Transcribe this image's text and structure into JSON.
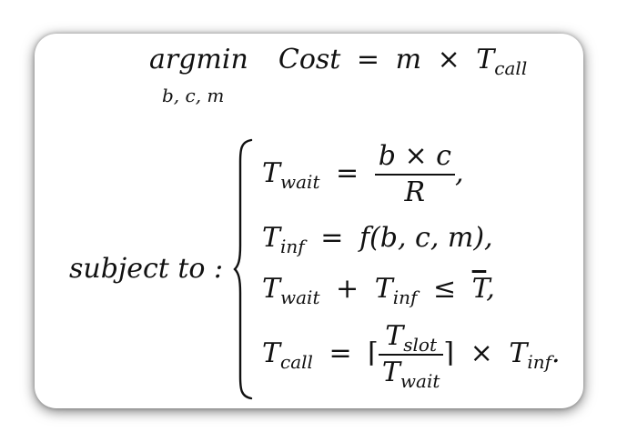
{
  "objective": {
    "operator": "argmin",
    "variables": "b, c, m",
    "lhs": "Cost",
    "equals": "=",
    "m": "m",
    "times": "×",
    "T": "T",
    "sub": "call"
  },
  "subject_to": "subject to :",
  "constraints": {
    "c1": {
      "T": "T",
      "sub": "wait",
      "eq": "=",
      "num": "b × c",
      "den": "R",
      "trail": ","
    },
    "c2": {
      "T": "T",
      "sub": "inf",
      "eq": "=",
      "rhs": "f(b, c, m)",
      "trail": ","
    },
    "c3": {
      "T1": "T",
      "sub1": "wait",
      "plus": "+",
      "T2": "T",
      "sub2": "inf",
      "leq": "≤",
      "rhs": "T",
      "trail": ","
    },
    "c4": {
      "T": "T",
      "sub": "call",
      "eq": "=",
      "lceil": "⌈",
      "numT": "T",
      "numSub": "slot",
      "denT": "T",
      "denSub": "wait",
      "rceil": "⌉",
      "times": "×",
      "T2": "T",
      "sub2": "inf",
      "trail": "."
    }
  }
}
